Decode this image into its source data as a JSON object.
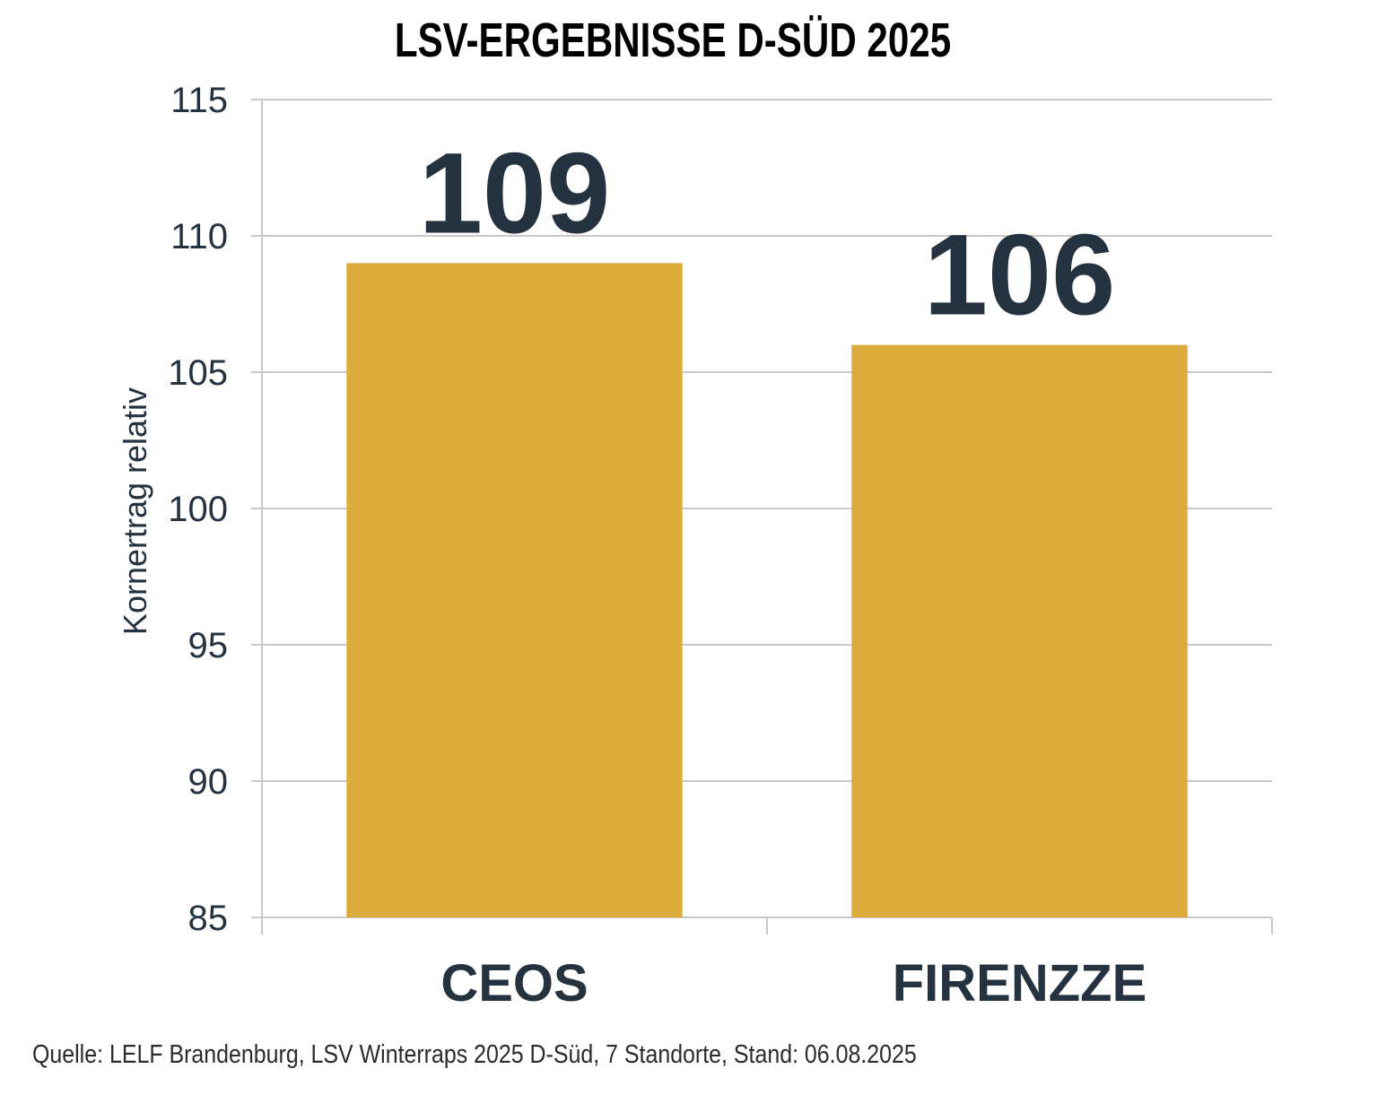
{
  "chart_data": {
    "type": "bar",
    "title": "LSV-ERGEBNISSE D-SÜD 2025",
    "categories": [
      "CEOS",
      "FIRENZZE"
    ],
    "values": [
      109,
      106
    ],
    "data_labels": [
      "109",
      "106"
    ],
    "ylabel": "Kornertrag relativ",
    "xlabel": "",
    "ylim": [
      85,
      115
    ],
    "yticks": [
      85,
      90,
      95,
      100,
      105,
      110,
      115
    ],
    "grid": true,
    "legend": "none",
    "bar_color": "#DDAA3C",
    "text_color": "#253340"
  },
  "source_note": "Quelle: LELF Brandenburg, LSV Winterraps 2025 D-Süd, 7 Standorte, Stand: 06.08.2025"
}
